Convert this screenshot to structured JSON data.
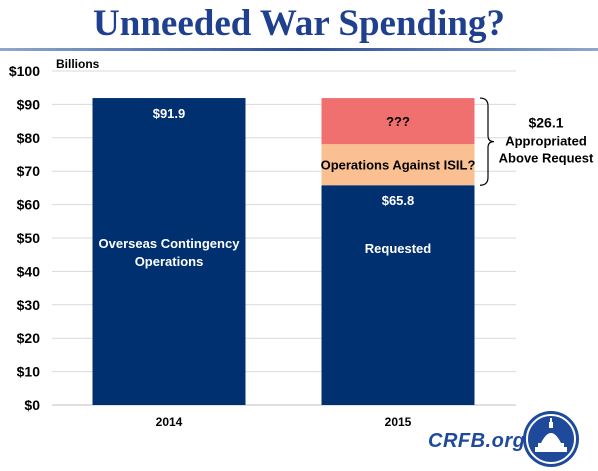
{
  "header": {
    "title": "Unneeded War Spending?"
  },
  "brand": {
    "text": "CRFB.org",
    "logo_icon": "capitol-dome-seal-icon"
  },
  "chart_data": {
    "type": "bar",
    "stacked": true,
    "unit_label": "Billions",
    "categories": [
      "2014",
      "2015"
    ],
    "ylim": [
      0,
      100
    ],
    "yticks": [
      {
        "value": 0,
        "label": "$0"
      },
      {
        "value": 10,
        "label": "$10"
      },
      {
        "value": 20,
        "label": "$20"
      },
      {
        "value": 30,
        "label": "$30"
      },
      {
        "value": 40,
        "label": "$40"
      },
      {
        "value": 50,
        "label": "$50"
      },
      {
        "value": 60,
        "label": "$60"
      },
      {
        "value": 70,
        "label": "$70"
      },
      {
        "value": 80,
        "label": "$80"
      },
      {
        "value": 90,
        "label": "$90"
      },
      {
        "value": 100,
        "label": "$100"
      }
    ],
    "segments": [
      {
        "category": "2014",
        "base": 0,
        "value": 91.9,
        "color": "#003070",
        "label": "Overseas Contingency Operations",
        "label_dark": false,
        "total_label": "$91.9"
      },
      {
        "category": "2015",
        "base": 0,
        "value": 65.8,
        "color": "#003070",
        "label": "Requested",
        "label_dark": false,
        "total_label": "$65.8"
      },
      {
        "category": "2015",
        "base": 65.8,
        "value": 12.3,
        "color": "#fac092",
        "label": "Operations Against ISIL?",
        "label_dark": true
      },
      {
        "category": "2015",
        "base": 78.1,
        "value": 13.8,
        "color": "#f07070",
        "label": "???",
        "label_dark": true
      }
    ],
    "annotation": {
      "value_label": "$26.1",
      "lines": [
        "Appropriated",
        "Above Request"
      ],
      "from": 65.8,
      "to": 91.9
    },
    "grid": true,
    "legend": "none"
  }
}
